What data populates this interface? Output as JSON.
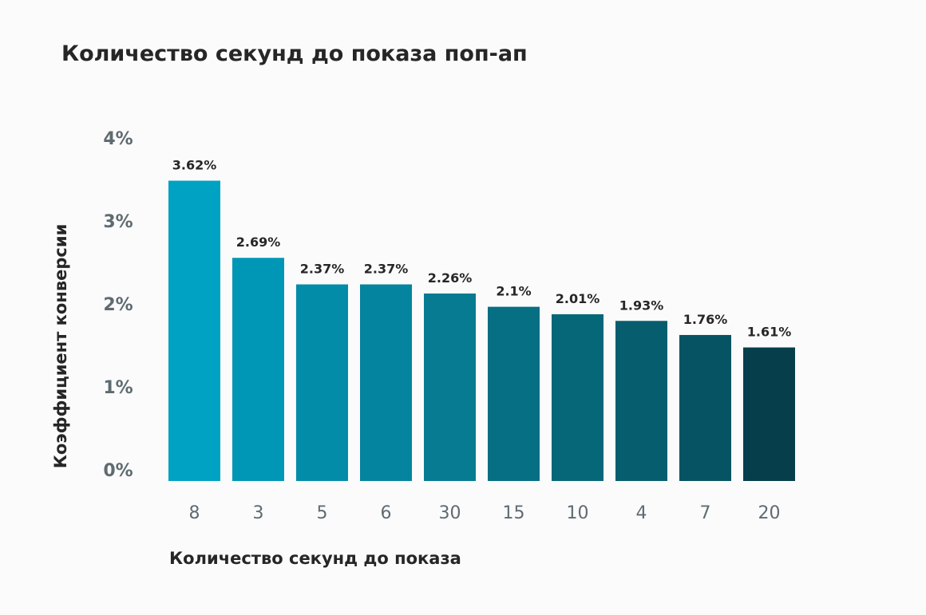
{
  "chart_data": {
    "type": "bar",
    "title": "Количество секунд до показа поп-ап",
    "xlabel": "Количество секунд до показа",
    "ylabel": "Коэффициент конверсии",
    "categories": [
      "8",
      "3",
      "5",
      "6",
      "30",
      "15",
      "10",
      "4",
      "7",
      "20"
    ],
    "values": [
      3.62,
      2.69,
      2.37,
      2.37,
      2.26,
      2.1,
      2.01,
      1.93,
      1.76,
      1.61
    ],
    "data_labels": [
      "3.62%",
      "2.69%",
      "2.37%",
      "2.37%",
      "2.26%",
      "2.1%",
      "2.01%",
      "1.93%",
      "1.76%",
      "1.61%"
    ],
    "y_ticks": [
      0,
      1,
      2,
      3,
      4
    ],
    "y_tick_labels": [
      "0%",
      "1%",
      "2%",
      "3%",
      "4%"
    ],
    "ylim": [
      0,
      4
    ],
    "grid": false,
    "colors": [
      "#00a2c3",
      "#0097b6",
      "#038ca8",
      "#04849e",
      "#067b92",
      "#066f83",
      "#066778",
      "#065d6d",
      "#065463",
      "#073e4c"
    ]
  }
}
